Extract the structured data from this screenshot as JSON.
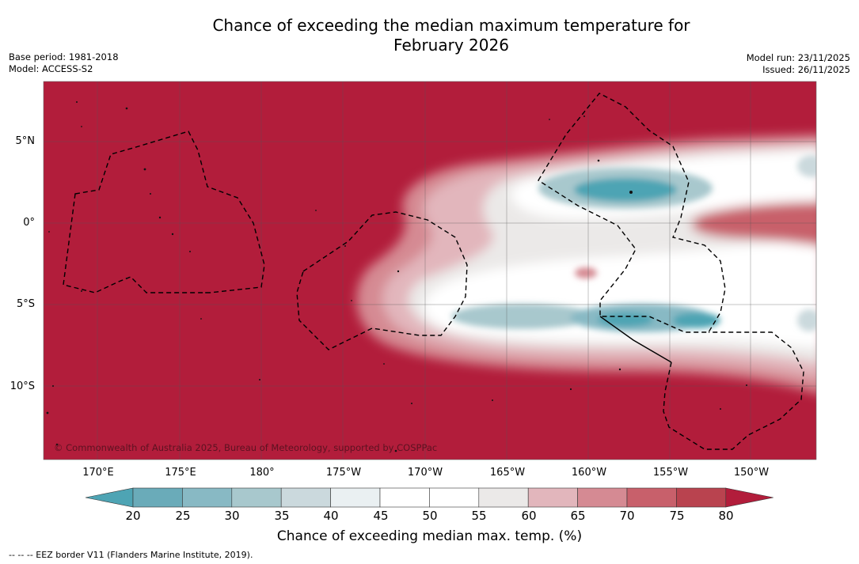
{
  "title": {
    "line1": "Chance of exceeding the median maximum temperature for",
    "line2": "February 2026"
  },
  "meta": {
    "base_period": "Base period: 1981-2018",
    "model": "Model: ACCESS-S2",
    "model_run": "Model run: 23/11/2025",
    "issued": "Issued: 26/11/2025"
  },
  "map": {
    "background_color": "#b21d3b",
    "lat_labels": [
      "5°N",
      "0°",
      "5°S",
      "10°S"
    ],
    "lon_labels": [
      "170°E",
      "175°E",
      "180°",
      "175°W",
      "170°W",
      "165°W",
      "160°W",
      "155°W",
      "150°W"
    ],
    "copyright": "© Commonwealth of Australia 2025, Bureau of Meteorology, supported by COSPPac"
  },
  "colorbar": {
    "label": "Chance of exceeding median max. temp. (%)",
    "ticks": [
      "20",
      "25",
      "30",
      "35",
      "40",
      "45",
      "50",
      "55",
      "60",
      "65",
      "70",
      "75",
      "80"
    ],
    "colors": [
      "#4ea4b4",
      "#6aabb9",
      "#88b9c4",
      "#a8c8cd",
      "#cbd9dd",
      "#eaf0f2",
      "#ffffff",
      "#ffffff",
      "#ebe9e8",
      "#e2b6bc",
      "#d58a93",
      "#c8606b",
      "#b9434f",
      "#b21d3b"
    ]
  },
  "footnote": "--  --  -- EEZ border V11 (Flanders Marine Institute, 2019)."
}
